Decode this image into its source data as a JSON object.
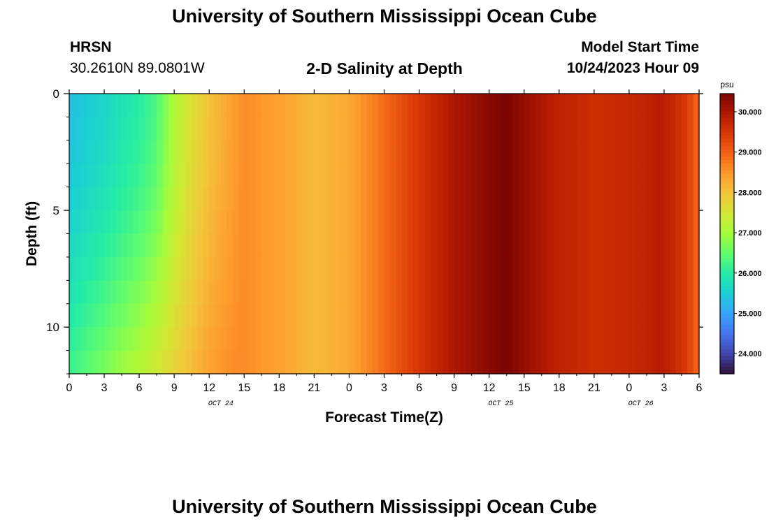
{
  "header": {
    "title": "University of Southern Mississippi Ocean Cube",
    "station": "HRSN",
    "coords": "30.2610N  89.0801W",
    "plot_title": "2-D Salinity at Depth",
    "model_label": "Model Start Time",
    "model_time": "10/24/2023 Hour 09",
    "footer_title": "University of Southern Mississippi Ocean Cube"
  },
  "chart_data": {
    "type": "heatmap",
    "title": "2-D Salinity at Depth",
    "xlabel": "Forecast Time(Z)",
    "ylabel": "Depth (ft)",
    "x_ticks": [
      "0",
      "3",
      "6",
      "9",
      "12",
      "15",
      "18",
      "21",
      "0",
      "3",
      "6",
      "9",
      "12",
      "15",
      "18",
      "21",
      "0",
      "3",
      "6"
    ],
    "date_labels": [
      "OCT 24",
      "OCT 25",
      "OCT 26"
    ],
    "x_range_hours": [
      0,
      54
    ],
    "y_ticks": [
      "0",
      "5",
      "10"
    ],
    "ylim": [
      0,
      12
    ],
    "y_inverted": true,
    "colorbar": {
      "unit": "psu",
      "range": [
        23.5,
        30.45
      ],
      "ticks": [
        "24.000",
        "25.000",
        "26.000",
        "27.000",
        "28.000",
        "29.000",
        "30.000"
      ]
    },
    "colormap": [
      "#30123b",
      "#4145ab",
      "#4675ed",
      "#39a2fc",
      "#1bcfd4",
      "#24eca6",
      "#61fc6c",
      "#a4fc3b",
      "#d1e834",
      "#f3c63a",
      "#fe9b2d",
      "#f36315",
      "#d93806",
      "#b11901",
      "#7a0403"
    ],
    "salinity_surface": [
      {
        "x": 0,
        "v": 25.3
      },
      {
        "x": 3,
        "v": 25.6
      },
      {
        "x": 6,
        "v": 26.0
      },
      {
        "x": 7.5,
        "v": 26.3
      },
      {
        "x": 9,
        "v": 27.1
      },
      {
        "x": 10.5,
        "v": 27.6
      },
      {
        "x": 12,
        "v": 28.0
      },
      {
        "x": 14,
        "v": 28.4
      },
      {
        "x": 15,
        "v": 28.6
      },
      {
        "x": 18,
        "v": 28.4
      },
      {
        "x": 21,
        "v": 28.1
      },
      {
        "x": 24,
        "v": 28.3
      },
      {
        "x": 27,
        "v": 28.9
      },
      {
        "x": 30,
        "v": 29.5
      },
      {
        "x": 33,
        "v": 30.0
      },
      {
        "x": 36,
        "v": 30.3
      },
      {
        "x": 37.5,
        "v": 30.45
      },
      {
        "x": 39,
        "v": 30.2
      },
      {
        "x": 42,
        "v": 29.8
      },
      {
        "x": 45,
        "v": 29.6
      },
      {
        "x": 48,
        "v": 29.7
      },
      {
        "x": 51,
        "v": 29.9
      },
      {
        "x": 53,
        "v": 29.4
      },
      {
        "x": 54,
        "v": 28.9
      }
    ],
    "salinity_bottom": [
      {
        "x": 0,
        "v": 26.2
      },
      {
        "x": 3,
        "v": 26.7
      },
      {
        "x": 6,
        "v": 27.2
      },
      {
        "x": 7.5,
        "v": 27.5
      },
      {
        "x": 9,
        "v": 27.8
      },
      {
        "x": 10.5,
        "v": 28.1
      },
      {
        "x": 12,
        "v": 28.4
      },
      {
        "x": 14,
        "v": 28.6
      },
      {
        "x": 15,
        "v": 28.6
      },
      {
        "x": 18,
        "v": 28.4
      },
      {
        "x": 21,
        "v": 28.1
      },
      {
        "x": 24,
        "v": 28.3
      },
      {
        "x": 27,
        "v": 28.9
      },
      {
        "x": 30,
        "v": 29.5
      },
      {
        "x": 33,
        "v": 30.0
      },
      {
        "x": 36,
        "v": 30.3
      },
      {
        "x": 37.5,
        "v": 30.45
      },
      {
        "x": 39,
        "v": 30.2
      },
      {
        "x": 42,
        "v": 29.8
      },
      {
        "x": 45,
        "v": 29.6
      },
      {
        "x": 48,
        "v": 29.7
      },
      {
        "x": 51,
        "v": 29.9
      },
      {
        "x": 53,
        "v": 29.4
      },
      {
        "x": 54,
        "v": 28.9
      }
    ]
  }
}
